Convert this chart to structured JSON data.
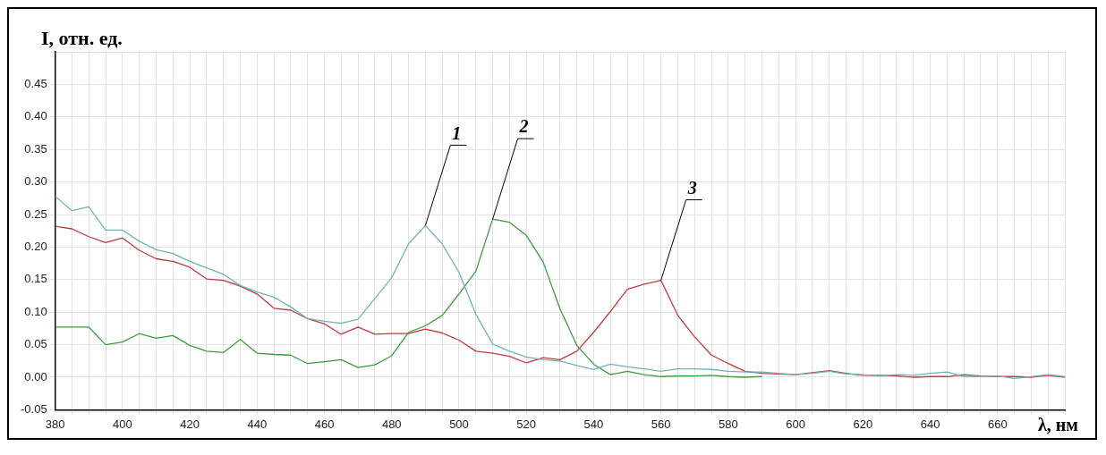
{
  "chart_data": {
    "type": "line",
    "xlabel": "λ, нм",
    "ylabel": "I, отн. ед.",
    "x": [
      380,
      385,
      390,
      395,
      400,
      405,
      410,
      415,
      420,
      425,
      430,
      435,
      440,
      445,
      450,
      455,
      460,
      465,
      470,
      475,
      480,
      485,
      490,
      495,
      500,
      505,
      510,
      515,
      520,
      525,
      530,
      535,
      540,
      545,
      550,
      555,
      560,
      565,
      570,
      575,
      580,
      585,
      590,
      595,
      600,
      605,
      610,
      615,
      620,
      625,
      630,
      635,
      640,
      645,
      650,
      655,
      660,
      665,
      670,
      675,
      680
    ],
    "series": [
      {
        "name": "1",
        "color": "#6fb3b5",
        "values": [
          0.278,
          0.256,
          0.262,
          0.226,
          0.226,
          0.209,
          0.196,
          0.19,
          0.178,
          0.168,
          0.158,
          0.141,
          0.131,
          0.123,
          0.108,
          0.09,
          0.086,
          0.083,
          0.089,
          0.121,
          0.153,
          0.205,
          0.233,
          0.205,
          0.161,
          0.097,
          0.051,
          0.04,
          0.031,
          0.027,
          0.025,
          0.018,
          0.012,
          0.02,
          0.016,
          0.013,
          0.009,
          0.013,
          0.013,
          0.012,
          0.009,
          0.008,
          0.008,
          0.006,
          0.004,
          0.006,
          0.009,
          0.005,
          0.004,
          0.002,
          0.004,
          0.003,
          0.006,
          0.008,
          0.001,
          0.001,
          0.002,
          -0.002,
          0.001,
          0.004,
          0.001
        ]
      },
      {
        "name": "2",
        "color": "#3c9c3c",
        "values": [
          0.077,
          0.077,
          0.077,
          0.05,
          0.054,
          0.067,
          0.06,
          0.064,
          0.049,
          0.04,
          0.038,
          0.058,
          0.037,
          0.035,
          0.034,
          0.021,
          0.024,
          0.027,
          0.015,
          0.019,
          0.033,
          0.069,
          0.079,
          0.095,
          0.128,
          0.163,
          0.243,
          0.238,
          0.218,
          0.177,
          0.105,
          0.049,
          0.02,
          0.004,
          0.009,
          0.004,
          0.001,
          0.002,
          0.002,
          0.003,
          0.001,
          0.0,
          0.001,
          null,
          null,
          null,
          null,
          null,
          null,
          null,
          null,
          null,
          null,
          null,
          null,
          null,
          null,
          null,
          null,
          null,
          null
        ]
      },
      {
        "name": "3",
        "color": "#c23a3c",
        "values": [
          0.232,
          0.228,
          0.216,
          0.207,
          0.214,
          0.195,
          0.182,
          0.178,
          0.169,
          0.151,
          0.149,
          0.14,
          0.128,
          0.106,
          0.103,
          0.09,
          0.082,
          0.066,
          0.077,
          0.066,
          0.067,
          0.067,
          0.074,
          0.068,
          0.057,
          0.04,
          0.037,
          0.032,
          0.022,
          0.03,
          0.027,
          0.04,
          0.069,
          0.101,
          0.135,
          0.143,
          0.149,
          0.095,
          0.062,
          0.034,
          0.021,
          0.009,
          0.006,
          0.005,
          0.004,
          0.007,
          0.01,
          0.006,
          0.003,
          0.003,
          0.002,
          0.0,
          0.001,
          0.001,
          0.004,
          0.002,
          0.001,
          0.001,
          0.0,
          0.003,
          0.0
        ]
      }
    ],
    "xlim": [
      380,
      680
    ],
    "xticks": [
      380,
      {
        "value": 385,
        "label": null
      },
      {
        "value": 390,
        "label": null
      },
      {
        "value": 395,
        "label": null
      },
      400,
      {
        "value": 405,
        "label": null
      },
      {
        "value": 410,
        "label": null
      },
      {
        "value": 415,
        "label": null
      },
      420,
      {
        "value": 425,
        "label": null
      },
      {
        "value": 430,
        "label": null
      },
      {
        "value": 435,
        "label": null
      },
      440,
      {
        "value": 445,
        "label": null
      },
      {
        "value": 450,
        "label": null
      },
      {
        "value": 455,
        "label": null
      },
      460,
      {
        "value": 465,
        "label": null
      },
      {
        "value": 470,
        "label": null
      },
      {
        "value": 475,
        "label": null
      },
      480,
      {
        "value": 485,
        "label": null
      },
      {
        "value": 490,
        "label": null
      },
      {
        "value": 495,
        "label": null
      },
      500,
      {
        "value": 505,
        "label": null
      },
      {
        "value": 510,
        "label": null
      },
      {
        "value": 515,
        "label": null
      },
      520,
      {
        "value": 525,
        "label": null
      },
      {
        "value": 530,
        "label": null
      },
      {
        "value": 535,
        "label": null
      },
      540,
      {
        "value": 545,
        "label": null
      },
      {
        "value": 550,
        "label": null
      },
      {
        "value": 555,
        "label": null
      },
      560,
      {
        "value": 565,
        "label": null
      },
      {
        "value": 570,
        "label": null
      },
      {
        "value": 575,
        "label": null
      },
      580,
      {
        "value": 585,
        "label": null
      },
      {
        "value": 590,
        "label": null
      },
      {
        "value": 595,
        "label": null
      },
      600,
      {
        "value": 605,
        "label": null
      },
      {
        "value": 610,
        "label": null
      },
      {
        "value": 615,
        "label": null
      },
      620,
      {
        "value": 625,
        "label": null
      },
      {
        "value": 630,
        "label": null
      },
      {
        "value": 635,
        "label": null
      },
      640,
      {
        "value": 645,
        "label": null
      },
      {
        "value": 650,
        "label": null
      },
      {
        "value": 655,
        "label": null
      },
      660,
      {
        "value": 665,
        "label": null
      },
      {
        "value": 670,
        "label": null
      },
      {
        "value": 675,
        "label": null
      },
      {
        "value": 680,
        "label": null
      }
    ],
    "ylim": [
      -0.05,
      0.5
    ],
    "yticks": [
      {
        "value": -0.05,
        "label": "-0.05"
      },
      {
        "value": 0,
        "label": "0.00"
      },
      {
        "value": 0.05,
        "label": "0.05"
      },
      {
        "value": 0.1,
        "label": "0.10"
      },
      {
        "value": 0.15,
        "label": "0.15"
      },
      {
        "value": 0.2,
        "label": "0.20"
      },
      {
        "value": 0.25,
        "label": "0.25"
      },
      {
        "value": 0.3,
        "label": "0.30"
      },
      {
        "value": 0.35,
        "label": "0.35"
      },
      {
        "value": 0.4,
        "label": "0.40"
      },
      {
        "value": 0.45,
        "label": "0.45"
      },
      {
        "value": 0.5,
        "label": null
      }
    ],
    "grid": true,
    "legend": false,
    "marker": "none",
    "line_style": "solid"
  }
}
